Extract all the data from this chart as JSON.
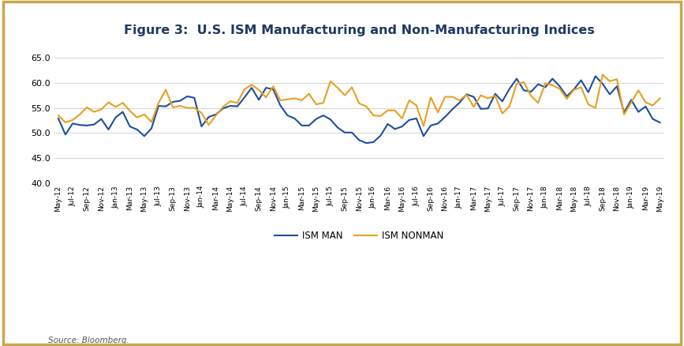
{
  "title": "Figure 3:  U.S. ISM Manufacturing and Non-Manufacturing Indices",
  "title_color": "#1f3864",
  "source_text": "Source: Bloomberg.",
  "background_color": "#ffffff",
  "border_color": "#c8a84b",
  "ylim": [
    40.0,
    67.5
  ],
  "yticks": [
    40.0,
    45.0,
    50.0,
    55.0,
    60.0,
    65.0
  ],
  "line_man_color": "#1f4e9e",
  "line_nonman_color": "#e8a020",
  "line_width": 1.5,
  "legend_man": "ISM MAN",
  "legend_nonman": "ISM NONMAN",
  "ism_man": [
    52.9,
    49.7,
    51.9,
    51.6,
    51.5,
    51.7,
    52.8,
    50.7,
    53.1,
    54.2,
    51.3,
    50.7,
    49.4,
    50.9,
    55.4,
    55.3,
    56.2,
    56.4,
    57.3,
    57.0,
    51.3,
    53.2,
    53.7,
    54.9,
    55.4,
    55.3,
    57.1,
    59.0,
    56.6,
    59.0,
    58.7,
    55.5,
    53.5,
    52.9,
    51.5,
    51.5,
    52.8,
    53.5,
    52.7,
    51.1,
    50.1,
    50.1,
    48.6,
    48.0,
    48.2,
    49.5,
    51.8,
    50.8,
    51.3,
    52.6,
    52.9,
    49.4,
    51.5,
    51.9,
    53.2,
    54.7,
    56.0,
    57.7,
    57.2,
    54.8,
    54.9,
    57.8,
    56.3,
    58.8,
    60.8,
    58.5,
    58.2,
    59.7,
    59.1,
    60.8,
    59.3,
    57.3,
    58.7,
    60.5,
    58.1,
    61.3,
    59.8,
    57.7,
    59.3,
    54.1,
    56.6,
    54.2,
    55.3,
    52.8,
    52.1
  ],
  "ism_nonman": [
    53.5,
    52.1,
    52.6,
    53.7,
    55.1,
    54.2,
    54.7,
    56.1,
    55.2,
    56.0,
    54.4,
    53.1,
    53.7,
    52.2,
    56.0,
    58.6,
    55.1,
    55.4,
    55.0,
    55.0,
    54.0,
    51.6,
    53.5,
    55.2,
    56.3,
    56.0,
    58.7,
    59.6,
    58.6,
    57.1,
    59.3,
    56.5,
    56.7,
    56.9,
    56.5,
    57.8,
    55.7,
    56.0,
    60.3,
    59.0,
    57.5,
    59.1,
    55.9,
    55.3,
    53.5,
    53.4,
    54.5,
    54.5,
    52.9,
    56.5,
    55.5,
    51.4,
    57.1,
    54.1,
    57.2,
    57.2,
    56.5,
    57.6,
    55.2,
    57.5,
    56.9,
    57.4,
    53.9,
    55.3,
    59.8,
    60.1,
    57.4,
    56.0,
    59.9,
    59.5,
    58.8,
    56.8,
    58.6,
    59.1,
    55.7,
    55.0,
    61.6,
    60.3,
    60.7,
    53.7,
    56.1,
    58.5,
    56.1,
    55.5,
    56.9
  ]
}
